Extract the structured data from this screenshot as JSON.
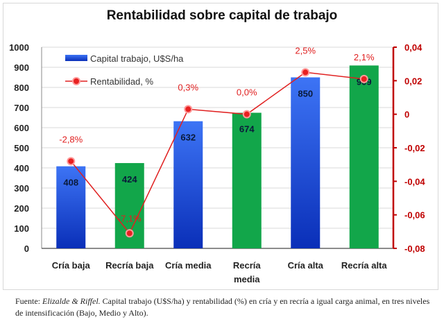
{
  "chart_data": {
    "type": "bar",
    "title": "Rentabilidad sobre capital de trabajo",
    "categories": [
      "Cría baja",
      "Recría baja",
      "Cría media",
      "Recría media",
      "Cría alta",
      "Recría alta"
    ],
    "series": [
      {
        "name": "Capital trabajo, U$S/ha",
        "type": "bar",
        "axis": "left",
        "values": [
          408,
          424,
          632,
          674,
          850,
          909
        ],
        "labels": [
          "408",
          "424",
          "632",
          "674",
          "850",
          "909"
        ],
        "colors": [
          "#1f4fe0",
          "#12a64a",
          "#1f4fe0",
          "#12a64a",
          "#1f4fe0",
          "#12a64a"
        ]
      },
      {
        "name": "Rentabilidad, %",
        "type": "line",
        "axis": "right",
        "values": [
          -0.028,
          -0.071,
          0.003,
          0.0,
          0.025,
          0.021
        ],
        "labels": [
          "-2,8%",
          "-7,1%",
          "0,3%",
          "0,0%",
          "2,5%",
          "2,1%"
        ],
        "color": "#e02020"
      }
    ],
    "ylim": [
      0,
      1000
    ],
    "y_ticks": [
      "0",
      "100",
      "200",
      "300",
      "400",
      "500",
      "600",
      "700",
      "800",
      "900",
      "1000"
    ],
    "y2lim": [
      -0.08,
      0.04
    ],
    "y2_ticks": [
      "-0,08",
      "-0,06",
      "-0,04",
      "-0,02",
      "0",
      "0,02",
      "0,04"
    ],
    "grid": true,
    "legend": "top-left"
  },
  "caption": {
    "source_label": "Fuente: ",
    "authors": "Elizalde & Riffel.",
    "text": " Capital trabajo (U$S/ha) y rentabilidad (%) en cría y en recría a igual carga animal, en tres niveles de intensificación (Bajo, Medio y Alto)."
  }
}
